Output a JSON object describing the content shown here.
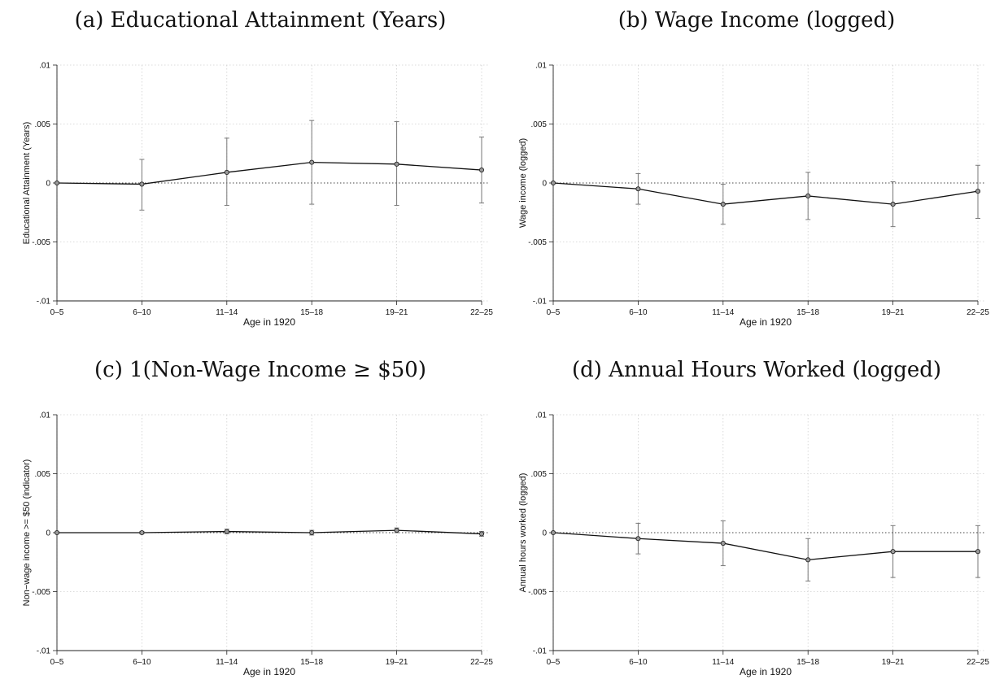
{
  "chart_data": [
    {
      "type": "line",
      "title": "(a) Educational Attainment (Years)",
      "xlabel": "Age in 1920",
      "ylabel": "Educational Attainment (Years)",
      "categories": [
        "0–5",
        "6–10",
        "11–14",
        "15–18",
        "19–21",
        "22–25"
      ],
      "yticks": [
        ".01",
        ".005",
        "0",
        "-.005",
        "-.01"
      ],
      "ylim": [
        -0.01,
        0.01
      ],
      "grid": true,
      "reference_line": 0,
      "series": [
        {
          "values": [
            0,
            -0.0001,
            0.0009,
            0.00175,
            0.0016,
            0.0011
          ],
          "ci_low": [
            0,
            -0.0023,
            -0.0019,
            -0.0018,
            -0.0019,
            -0.0017
          ],
          "ci_high": [
            0,
            0.002,
            0.0038,
            0.0053,
            0.0052,
            0.0039
          ]
        }
      ]
    },
    {
      "type": "line",
      "title": "(b) Wage Income (logged)",
      "xlabel": "Age in 1920",
      "ylabel": "Wage income (logged)",
      "categories": [
        "0–5",
        "6–10",
        "11–14",
        "15–18",
        "19–21",
        "22–25"
      ],
      "yticks": [
        ".01",
        ".005",
        "0",
        "-.005",
        "-.01"
      ],
      "ylim": [
        -0.01,
        0.01
      ],
      "grid": true,
      "reference_line": 0,
      "series": [
        {
          "values": [
            0,
            -0.0005,
            -0.0018,
            -0.0011,
            -0.0018,
            -0.0007
          ],
          "ci_low": [
            0,
            -0.0018,
            -0.0035,
            -0.0031,
            -0.0037,
            -0.003
          ],
          "ci_high": [
            0,
            0.0008,
            -0.0001,
            0.0009,
            0.0001,
            0.0015
          ]
        }
      ]
    },
    {
      "type": "line",
      "title": "(c) 1(Non-Wage Income ≥ $50)",
      "xlabel": "Age in 1920",
      "ylabel": "Non−wage income >= $50 (indicator)",
      "categories": [
        "0–5",
        "6–10",
        "11–14",
        "15–18",
        "19–21",
        "22–25"
      ],
      "yticks": [
        ".01",
        ".005",
        "0",
        "-.005",
        "-.01"
      ],
      "ylim": [
        -0.01,
        0.01
      ],
      "grid": true,
      "reference_line": 0,
      "series": [
        {
          "values": [
            0,
            0,
            0.0001,
            0,
            0.0002,
            -0.0001
          ],
          "ci_low": [
            0,
            -0.0001,
            -0.0001,
            -0.0002,
            0,
            -0.0003
          ],
          "ci_high": [
            0,
            0.0001,
            0.0003,
            0.0002,
            0.0004,
            0.0001
          ]
        }
      ]
    },
    {
      "type": "line",
      "title": "(d) Annual Hours Worked (logged)",
      "xlabel": "Age in 1920",
      "ylabel": "Annual hours worked (logged)",
      "categories": [
        "0–5",
        "6–10",
        "11–14",
        "15–18",
        "19–21",
        "22–25"
      ],
      "yticks": [
        ".01",
        ".005",
        "0",
        "-.005",
        "-.01"
      ],
      "ylim": [
        -0.01,
        0.01
      ],
      "grid": true,
      "reference_line": 0,
      "series": [
        {
          "values": [
            0,
            -0.0005,
            -0.0009,
            -0.0023,
            -0.0016,
            -0.0016
          ],
          "ci_low": [
            0,
            -0.0018,
            -0.0028,
            -0.0041,
            -0.0038,
            -0.0038
          ],
          "ci_high": [
            0,
            0.0008,
            0.001,
            -0.0005,
            0.0006,
            0.0006
          ]
        }
      ]
    }
  ]
}
